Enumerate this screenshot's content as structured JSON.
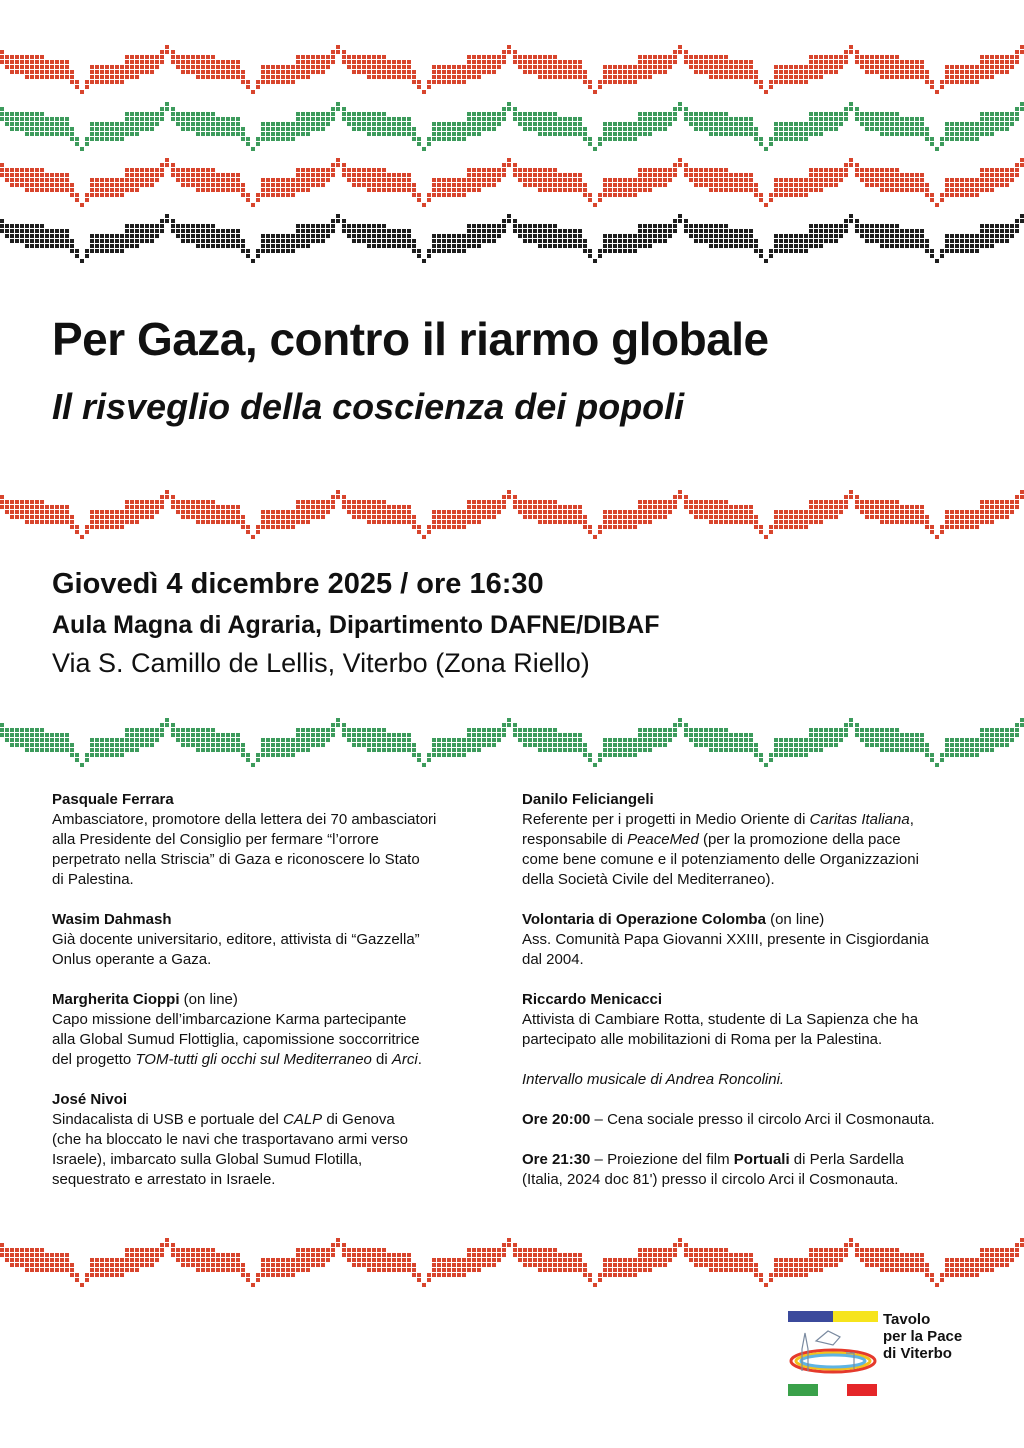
{
  "pattern_colors": {
    "red": "#d8452d",
    "green": "#3d9b5c",
    "black": "#1e1e1e"
  },
  "header": {
    "title": "Per Gaza, contro il riarmo globale",
    "subtitle": "Il risveglio della coscienza dei popoli"
  },
  "event": {
    "date": "Giovedì 4 dicembre 2025 / ore 16:30",
    "venue": "Aula Magna di Agraria, Dipartimento DAFNE/DIBAF",
    "address": "Via S. Camillo de Lellis, Viterbo (Zona Riello)"
  },
  "left_column": [
    [
      [
        "b",
        "Pasquale Ferrara"
      ],
      [
        "",
        "\nAmbasciatore, promotore della lettera dei 70 ambasciatori\nalla Presidente del Consiglio per fermare “l’orrore\nperpetrato nella Striscia” di Gaza e riconoscere lo Stato\ndi Palestina."
      ]
    ],
    [
      [
        "b",
        "Wasim Dahmash"
      ],
      [
        "",
        "\nGià docente universitario, editore, attivista di “Gazzella”\nOnlus operante a Gaza."
      ]
    ],
    [
      [
        "b",
        "Margherita Cioppi"
      ],
      [
        "",
        " (on line)\nCapo missione dell’imbarcazione Karma partecipante\nalla Global Sumud Flottiglia, capomissione soccorritrice\ndel progetto "
      ],
      [
        "i",
        "TOM-tutti gli occhi sul Mediterraneo"
      ],
      [
        "",
        " di "
      ],
      [
        "i",
        "Arci"
      ],
      [
        "",
        "."
      ]
    ],
    [
      [
        "b",
        "José Nivoi"
      ],
      [
        "",
        "\nSindacalista di USB e portuale del "
      ],
      [
        "i",
        "CALP"
      ],
      [
        "",
        " di Genova\n(che ha bloccato le navi che trasportavano armi verso\nIsraele), imbarcato sulla Global Sumud Flotilla,\nsequestrato e arrestato in Israele."
      ]
    ]
  ],
  "right_column": [
    [
      [
        "b",
        "Danilo Feliciangeli"
      ],
      [
        "",
        "\nReferente per i progetti in Medio Oriente di "
      ],
      [
        "i",
        "Caritas Italiana"
      ],
      [
        "",
        ",\nresponsabile di "
      ],
      [
        "i",
        "PeaceMed"
      ],
      [
        "",
        " (per la promozione della pace\ncome bene comune e il potenziamento delle Organizzazioni\ndella Società Civile del Mediterraneo)."
      ]
    ],
    [
      [
        "b",
        "Volontaria di Operazione Colomba"
      ],
      [
        "",
        " (on line)\nAss. Comunità Papa Giovanni XXIII, presente in Cisgiordania\ndal 2004."
      ]
    ],
    [
      [
        "b",
        "Riccardo Menicacci"
      ],
      [
        "",
        "\nAttivista di Cambiare Rotta, studente di La Sapienza che ha\npartecipato alle mobilitazioni di Roma per la Palestina."
      ]
    ],
    [
      [
        "i",
        "Intervallo musicale di Andrea Roncolini."
      ]
    ],
    [
      [
        "b",
        "Ore 20:00"
      ],
      [
        "",
        " – Cena sociale presso il circolo Arci il Cosmonauta."
      ]
    ],
    [
      [
        "b",
        "Ore 21:30"
      ],
      [
        "",
        " – Proiezione del film "
      ],
      [
        "b",
        "Portuali"
      ],
      [
        "",
        " di Perla Sardella\n(Italia, 2024 doc 81') presso il circolo Arci il Cosmonauta."
      ]
    ]
  ],
  "logo": {
    "text": "Tavolo\nper la Pace\ndi Viterbo"
  }
}
